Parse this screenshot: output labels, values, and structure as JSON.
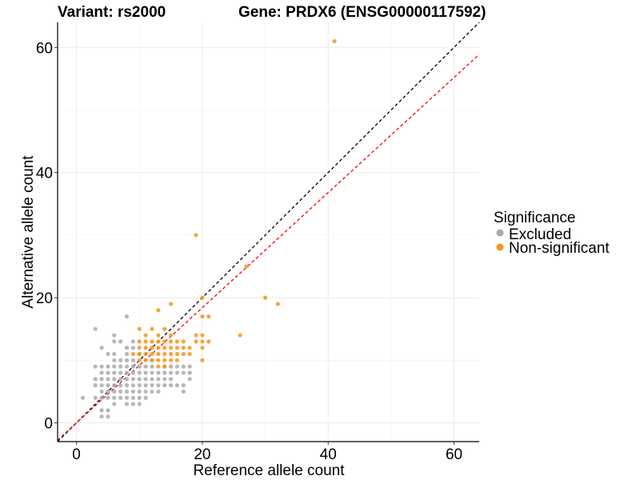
{
  "header": {
    "variant_title": "Variant: rs2000",
    "gene_title": "Gene: PRDX6 (ENSG00000117592)"
  },
  "chart_data": {
    "type": "scatter",
    "xlabel": "Reference allele count",
    "ylabel": "Alternative allele count",
    "xlim": [
      -3,
      64
    ],
    "ylim": [
      -3,
      64
    ],
    "x_ticks": [
      0,
      20,
      40,
      60
    ],
    "y_ticks": [
      0,
      20,
      40,
      60
    ],
    "grid": true,
    "legend": {
      "title": "Significance",
      "placement": "right"
    },
    "reference_lines": [
      {
        "style": "dashed",
        "color": "#000000",
        "slope": 1,
        "intercept": 0
      },
      {
        "style": "dashed",
        "color": "#ff0000",
        "slope": 0.92,
        "intercept": 0
      }
    ],
    "series": [
      {
        "name": "Excluded",
        "color": "#aaaaaa",
        "points": [
          [
            1,
            4
          ],
          [
            3,
            15
          ],
          [
            3,
            9
          ],
          [
            3,
            7
          ],
          [
            3,
            6
          ],
          [
            3,
            4
          ],
          [
            4,
            12
          ],
          [
            4,
            9
          ],
          [
            4,
            8
          ],
          [
            4,
            7
          ],
          [
            4,
            6
          ],
          [
            4,
            5
          ],
          [
            4,
            4
          ],
          [
            4,
            2
          ],
          [
            4,
            1
          ],
          [
            5,
            11
          ],
          [
            5,
            9
          ],
          [
            5,
            8
          ],
          [
            5,
            7
          ],
          [
            5,
            6
          ],
          [
            5,
            5
          ],
          [
            5,
            4
          ],
          [
            5,
            2
          ],
          [
            5,
            1
          ],
          [
            6,
            14
          ],
          [
            6,
            13
          ],
          [
            6,
            11
          ],
          [
            6,
            10
          ],
          [
            6,
            9
          ],
          [
            6,
            8
          ],
          [
            6,
            7
          ],
          [
            6,
            6
          ],
          [
            6,
            5
          ],
          [
            6,
            4
          ],
          [
            6,
            3
          ],
          [
            7,
            13
          ],
          [
            7,
            10
          ],
          [
            7,
            9
          ],
          [
            7,
            8
          ],
          [
            7,
            7
          ],
          [
            7,
            6
          ],
          [
            7,
            5
          ],
          [
            7,
            4
          ],
          [
            8,
            17
          ],
          [
            8,
            12
          ],
          [
            8,
            11
          ],
          [
            8,
            10
          ],
          [
            8,
            9
          ],
          [
            8,
            8
          ],
          [
            8,
            7
          ],
          [
            8,
            6
          ],
          [
            8,
            5
          ],
          [
            8,
            4
          ],
          [
            8,
            3
          ],
          [
            9,
            13
          ],
          [
            9,
            12
          ],
          [
            9,
            10
          ],
          [
            9,
            9
          ],
          [
            9,
            8
          ],
          [
            9,
            7
          ],
          [
            9,
            6
          ],
          [
            9,
            5
          ],
          [
            9,
            4
          ],
          [
            9,
            3
          ],
          [
            10,
            11
          ],
          [
            10,
            9
          ],
          [
            10,
            8
          ],
          [
            10,
            7
          ],
          [
            10,
            6
          ],
          [
            10,
            5
          ],
          [
            10,
            4
          ],
          [
            10,
            3
          ],
          [
            11,
            9
          ],
          [
            11,
            8
          ],
          [
            11,
            7
          ],
          [
            11,
            6
          ],
          [
            11,
            5
          ],
          [
            11,
            4
          ],
          [
            12,
            10
          ],
          [
            12,
            9
          ],
          [
            12,
            8
          ],
          [
            12,
            7
          ],
          [
            12,
            6
          ],
          [
            12,
            5
          ],
          [
            13,
            8
          ],
          [
            13,
            7
          ],
          [
            13,
            6
          ],
          [
            13,
            5
          ],
          [
            14,
            9
          ],
          [
            14,
            8
          ],
          [
            14,
            7
          ],
          [
            14,
            6
          ],
          [
            15,
            9
          ],
          [
            15,
            8
          ],
          [
            15,
            7
          ],
          [
            15,
            6
          ],
          [
            16,
            9
          ],
          [
            16,
            8
          ],
          [
            16,
            6
          ],
          [
            17,
            9
          ],
          [
            17,
            8
          ],
          [
            17,
            6
          ],
          [
            17,
            5
          ],
          [
            18,
            9
          ],
          [
            18,
            8
          ],
          [
            18,
            7
          ]
        ]
      },
      {
        "name": "Non-significant",
        "color": "#f7941d",
        "points": [
          [
            9,
            11
          ],
          [
            10,
            15
          ],
          [
            10,
            13
          ],
          [
            10,
            12
          ],
          [
            10,
            11
          ],
          [
            10,
            10
          ],
          [
            11,
            14
          ],
          [
            11,
            13
          ],
          [
            11,
            12
          ],
          [
            11,
            11
          ],
          [
            11,
            10
          ],
          [
            12,
            15
          ],
          [
            12,
            13
          ],
          [
            12,
            12
          ],
          [
            12,
            11
          ],
          [
            12,
            10
          ],
          [
            13,
            18
          ],
          [
            13,
            14
          ],
          [
            13,
            13
          ],
          [
            13,
            12
          ],
          [
            13,
            11
          ],
          [
            13,
            10
          ],
          [
            13,
            9
          ],
          [
            14,
            15
          ],
          [
            14,
            13
          ],
          [
            14,
            12
          ],
          [
            14,
            11
          ],
          [
            14,
            10
          ],
          [
            14,
            9
          ],
          [
            15,
            19
          ],
          [
            15,
            14
          ],
          [
            15,
            13
          ],
          [
            15,
            12
          ],
          [
            15,
            11
          ],
          [
            15,
            10
          ],
          [
            16,
            13
          ],
          [
            16,
            12
          ],
          [
            16,
            11
          ],
          [
            16,
            10
          ],
          [
            17,
            13
          ],
          [
            17,
            12
          ],
          [
            17,
            11
          ],
          [
            18,
            12
          ],
          [
            18,
            11
          ],
          [
            19,
            30
          ],
          [
            19,
            14
          ],
          [
            19,
            13
          ],
          [
            20,
            20
          ],
          [
            20,
            17
          ],
          [
            20,
            14
          ],
          [
            20,
            13
          ],
          [
            20,
            12
          ],
          [
            20,
            10
          ],
          [
            21,
            17
          ],
          [
            21,
            13
          ],
          [
            26,
            14
          ],
          [
            27,
            25
          ],
          [
            30,
            20
          ],
          [
            32,
            19
          ],
          [
            41,
            61
          ]
        ]
      }
    ]
  }
}
